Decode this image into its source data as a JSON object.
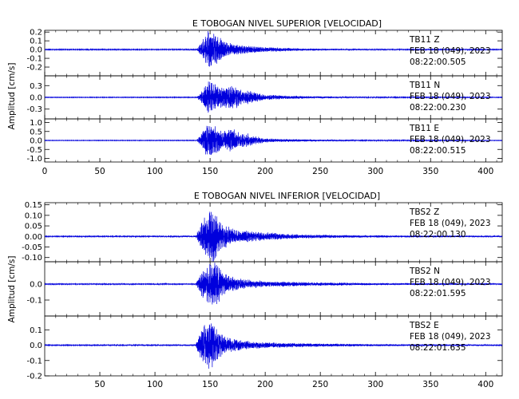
{
  "chart_data": [
    {
      "type": "line",
      "title": "E TOBOGAN NIVEL SUPERIOR [VELOCIDAD]",
      "ylabel": "Amplitud  [cm/s]",
      "xlim": [
        0,
        415
      ],
      "x_ticks": [
        0,
        50,
        100,
        150,
        200,
        250,
        300,
        350,
        400
      ],
      "show_x_tick_labels": true,
      "grid": false,
      "trace_color": "#0000dd",
      "panels": [
        {
          "station": "TB11",
          "component": "Z",
          "date": "FEB 18 (049), 2023",
          "time": "08:22:00.505",
          "ylim": [
            -0.3,
            0.22
          ],
          "y_ticks": [
            0.2,
            0.1,
            0.0,
            -0.1,
            -0.2
          ],
          "y_tick_labels": [
            "0.2",
            "0.1",
            "0.0",
            "-0.1",
            "-0.2"
          ],
          "noise_level": 0.004,
          "envelope": [
            [
              0,
              0.005
            ],
            [
              138,
              0.006
            ],
            [
              142,
              0.08
            ],
            [
              147,
              0.2
            ],
            [
              150,
              0.24
            ],
            [
              154,
              0.18
            ],
            [
              158,
              0.15
            ],
            [
              163,
              0.11
            ],
            [
              170,
              0.07
            ],
            [
              180,
              0.05
            ],
            [
              200,
              0.03
            ],
            [
              230,
              0.015
            ],
            [
              270,
              0.008
            ],
            [
              415,
              0.005
            ]
          ]
        },
        {
          "station": "TB11",
          "component": "N",
          "date": "FEB 18 (049), 2023",
          "time": "08:22:00.230",
          "ylim": [
            -0.55,
            0.55
          ],
          "y_ticks": [
            0.3,
            0.0,
            -0.3
          ],
          "y_tick_labels": [
            "0.3",
            "0.0",
            "-0.3"
          ],
          "noise_level": 0.006,
          "envelope": [
            [
              0,
              0.008
            ],
            [
              138,
              0.01
            ],
            [
              142,
              0.15
            ],
            [
              148,
              0.42
            ],
            [
              153,
              0.38
            ],
            [
              158,
              0.3
            ],
            [
              163,
              0.26
            ],
            [
              168,
              0.32
            ],
            [
              173,
              0.3
            ],
            [
              180,
              0.16
            ],
            [
              186,
              0.2
            ],
            [
              192,
              0.12
            ],
            [
              200,
              0.07
            ],
            [
              215,
              0.05
            ],
            [
              240,
              0.03
            ],
            [
              280,
              0.015
            ],
            [
              415,
              0.008
            ]
          ]
        },
        {
          "station": "TB11",
          "component": "E",
          "date": "FEB 18 (049), 2023",
          "time": "08:22:00.515",
          "ylim": [
            -1.2,
            1.2
          ],
          "y_ticks": [
            1.0,
            0.5,
            0.0,
            -0.5,
            -1.0
          ],
          "y_tick_labels": [
            "1.0",
            "0.5",
            "0.0",
            "-0.5",
            "-1.0"
          ],
          "noise_level": 0.01,
          "envelope": [
            [
              0,
              0.015
            ],
            [
              138,
              0.02
            ],
            [
              142,
              0.4
            ],
            [
              148,
              1.0
            ],
            [
              152,
              0.95
            ],
            [
              157,
              0.7
            ],
            [
              162,
              0.5
            ],
            [
              167,
              0.72
            ],
            [
              172,
              0.65
            ],
            [
              178,
              0.35
            ],
            [
              184,
              0.4
            ],
            [
              190,
              0.25
            ],
            [
              200,
              0.12
            ],
            [
              220,
              0.08
            ],
            [
              250,
              0.05
            ],
            [
              300,
              0.03
            ],
            [
              415,
              0.015
            ]
          ]
        }
      ]
    },
    {
      "type": "line",
      "title": "E TOBOGAN NIVEL INFERIOR [VELOCIDAD]",
      "ylabel": "Amplitud  [cm/s]",
      "xlim": [
        0,
        415
      ],
      "x_ticks": [
        50,
        100,
        150,
        200,
        250,
        300,
        350,
        400
      ],
      "show_x_tick_labels": true,
      "grid": false,
      "trace_color": "#0000dd",
      "panels": [
        {
          "station": "TBS2",
          "component": "Z",
          "date": "FEB 18 (049), 2023",
          "time": "08:22:00.130",
          "ylim": [
            -0.12,
            0.16
          ],
          "y_ticks": [
            0.15,
            0.1,
            0.05,
            0.0,
            -0.05,
            -0.1
          ],
          "y_tick_labels": [
            "0.15",
            "0.10",
            "0.05",
            "0.00",
            "-0.05",
            "-0.10"
          ],
          "noise_level": 0.001,
          "envelope": [
            [
              0,
              0.002
            ],
            [
              137,
              0.003
            ],
            [
              140,
              0.05
            ],
            [
              145,
              0.1
            ],
            [
              150,
              0.13
            ],
            [
              153,
              0.14
            ],
            [
              157,
              0.09
            ],
            [
              162,
              0.06
            ],
            [
              170,
              0.04
            ],
            [
              180,
              0.03
            ],
            [
              200,
              0.02
            ],
            [
              230,
              0.01
            ],
            [
              280,
              0.006
            ],
            [
              415,
              0.003
            ]
          ]
        },
        {
          "station": "TBS2",
          "component": "N",
          "date": "FEB 18 (049), 2023",
          "time": "08:22:01.595",
          "ylim": [
            -0.2,
            0.14
          ],
          "y_ticks": [
            0.0,
            -0.1
          ],
          "y_tick_labels": [
            "0.0",
            "-0.1"
          ],
          "noise_level": 0.002,
          "envelope": [
            [
              0,
              0.003
            ],
            [
              137,
              0.004
            ],
            [
              140,
              0.06
            ],
            [
              145,
              0.11
            ],
            [
              150,
              0.13
            ],
            [
              155,
              0.16
            ],
            [
              160,
              0.09
            ],
            [
              165,
              0.06
            ],
            [
              172,
              0.045
            ],
            [
              182,
              0.03
            ],
            [
              200,
              0.02
            ],
            [
              240,
              0.012
            ],
            [
              300,
              0.007
            ],
            [
              415,
              0.004
            ]
          ]
        },
        {
          "station": "TBS2",
          "component": "E",
          "date": "FEB 18 (049), 2023",
          "time": "08:22:01.635",
          "ylim": [
            -0.2,
            0.19
          ],
          "y_ticks": [
            0.1,
            0.0,
            -0.1,
            -0.2
          ],
          "y_tick_labels": [
            "0.1",
            "0.0",
            "-0.1",
            "-0.2"
          ],
          "noise_level": 0.002,
          "envelope": [
            [
              0,
              0.003
            ],
            [
              137,
              0.004
            ],
            [
              140,
              0.08
            ],
            [
              145,
              0.15
            ],
            [
              150,
              0.18
            ],
            [
              154,
              0.13
            ],
            [
              158,
              0.09
            ],
            [
              163,
              0.06
            ],
            [
              170,
              0.045
            ],
            [
              180,
              0.03
            ],
            [
              200,
              0.02
            ],
            [
              240,
              0.012
            ],
            [
              300,
              0.007
            ],
            [
              415,
              0.004
            ]
          ]
        }
      ]
    }
  ]
}
